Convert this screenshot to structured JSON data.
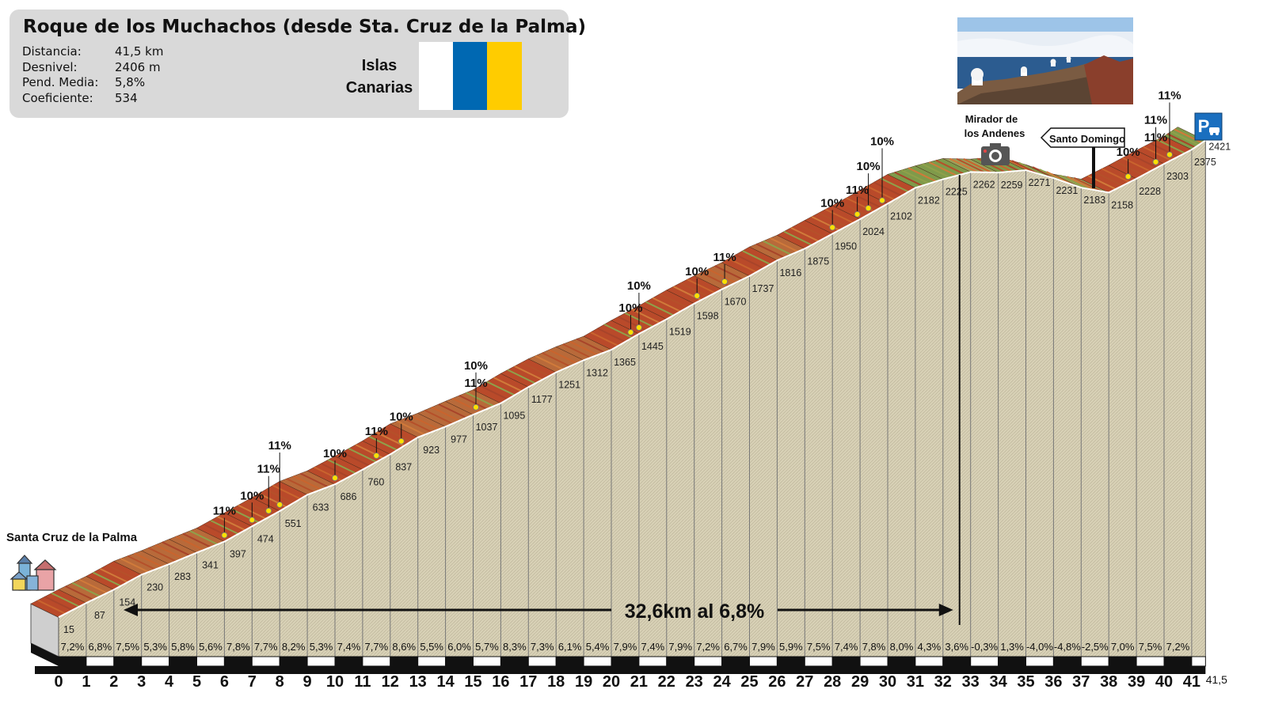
{
  "header": {
    "title": "Roque de los Muchachos (desde Sta. Cruz de la Palma)",
    "stats": [
      {
        "label": "Distancia:",
        "value": "41,5 km"
      },
      {
        "label": "Desnivel:",
        "value": "2406 m"
      },
      {
        "label": "Pend. Media:",
        "value": "5,8%"
      },
      {
        "label": "Coeficiente:",
        "value": "534"
      }
    ],
    "region": [
      "Islas",
      "Canarias"
    ],
    "flag_colors": [
      "#ffffff",
      "#0068b2",
      "#ffcc00"
    ]
  },
  "colors": {
    "fill": "#d6cfb4",
    "grid": "#777777",
    "ramp": "#c0582a",
    "marker": "#ffe000",
    "road": "#cfcfcf"
  },
  "chart_data": {
    "type": "area",
    "xlabel": "",
    "ylabel": "",
    "x_ticks": [
      "0",
      "1",
      "2",
      "3",
      "4",
      "5",
      "6",
      "7",
      "8",
      "9",
      "10",
      "11",
      "12",
      "13",
      "14",
      "15",
      "16",
      "17",
      "18",
      "19",
      "20",
      "21",
      "22",
      "23",
      "24",
      "25",
      "26",
      "27",
      "28",
      "29",
      "30",
      "31",
      "32",
      "33",
      "34",
      "35",
      "36",
      "37",
      "38",
      "39",
      "40",
      "41",
      "41,5"
    ],
    "km": [
      0,
      1,
      2,
      3,
      4,
      5,
      6,
      7,
      8,
      9,
      10,
      11,
      12,
      13,
      14,
      15,
      16,
      17,
      18,
      19,
      20,
      21,
      22,
      23,
      24,
      25,
      26,
      27,
      28,
      29,
      30,
      31,
      32,
      33,
      34,
      35,
      36,
      37,
      38,
      39,
      40,
      41,
      41.5
    ],
    "altitude": [
      15,
      87,
      154,
      230,
      283,
      341,
      397,
      474,
      551,
      633,
      686,
      760,
      837,
      923,
      977,
      1037,
      1095,
      1177,
      1251,
      1312,
      1365,
      1445,
      1519,
      1598,
      1670,
      1737,
      1816,
      1875,
      1950,
      2024,
      2102,
      2182,
      2225,
      2262,
      2259,
      2271,
      2231,
      2183,
      2158,
      2228,
      2303,
      2375,
      2421
    ],
    "altitude_labels": [
      "15",
      "87",
      "154",
      "230",
      "283",
      "341",
      "397",
      "474",
      "551",
      "633",
      "686",
      "760",
      "837",
      "923",
      "977",
      "1037",
      "1095",
      "1177",
      "1251",
      "1312",
      "1365",
      "1445",
      "1519",
      "1598",
      "1670",
      "1737",
      "1816",
      "1875",
      "1950",
      "2024",
      "2102",
      "2182",
      "2225",
      "2262",
      "2259",
      "2271",
      "2231",
      "2183",
      "2158",
      "2228",
      "2303",
      "2375",
      "2421"
    ],
    "gradients": [
      "7,2%",
      "6,8%",
      "7,5%",
      "5,3%",
      "5,8%",
      "5,6%",
      "7,8%",
      "7,7%",
      "8,2%",
      "5,3%",
      "7,4%",
      "7,7%",
      "8,6%",
      "5,5%",
      "6,0%",
      "5,7%",
      "8,3%",
      "7,3%",
      "6,1%",
      "5,4%",
      "7,9%",
      "7,4%",
      "7,9%",
      "7,2%",
      "6,7%",
      "7,9%",
      "5,9%",
      "7,5%",
      "7,4%",
      "7,8%",
      "8,0%",
      "4,3%",
      "3,6%",
      "-0,3%",
      "1,3%",
      "-4,0%",
      "-4,8%",
      "-2,5%",
      "7,0%",
      "7,5%",
      "7,2%"
    ],
    "steep_points": [
      {
        "km": 6.0,
        "label": "11%",
        "stack": 0
      },
      {
        "km": 7.0,
        "label": "10%",
        "stack": 0
      },
      {
        "km": 7.6,
        "label": "11%",
        "stack": 1
      },
      {
        "km": 8.0,
        "label": "11%",
        "stack": 2
      },
      {
        "km": 10.0,
        "label": "10%",
        "stack": 0
      },
      {
        "km": 11.5,
        "label": "11%",
        "stack": 0
      },
      {
        "km": 12.4,
        "label": "10%",
        "stack": 0
      },
      {
        "km": 15.1,
        "label": "11%",
        "stack": 0
      },
      {
        "km": 15.1,
        "label": "10%",
        "stack": 1
      },
      {
        "km": 20.7,
        "label": "10%",
        "stack": 0
      },
      {
        "km": 21.0,
        "label": "10%",
        "stack": 1
      },
      {
        "km": 23.1,
        "label": "10%",
        "stack": 0
      },
      {
        "km": 24.1,
        "label": "11%",
        "stack": 0
      },
      {
        "km": 28.0,
        "label": "10%",
        "stack": 0
      },
      {
        "km": 28.9,
        "label": "11%",
        "stack": 0
      },
      {
        "km": 29.3,
        "label": "10%",
        "stack": 1
      },
      {
        "km": 29.8,
        "label": "10%",
        "stack": 2
      },
      {
        "km": 38.7,
        "label": "10%",
        "stack": 0
      },
      {
        "km": 39.7,
        "label": "11%",
        "stack": 0
      },
      {
        "km": 39.7,
        "label": "11%",
        "stack": 1
      },
      {
        "km": 40.2,
        "label": "11%",
        "stack": 2
      }
    ],
    "climb_label": "32,6km al 6,8%",
    "climb_range": [
      0,
      32.6
    ],
    "annotations": {
      "start_town": "Santa Cruz de la Palma",
      "viewpoint": [
        "Mirador de",
        "los Andenes"
      ],
      "viewpoint_km": 32.8,
      "junction": "Santo Domingo",
      "junction_km": 37.4,
      "parking_icon": "parking-icon",
      "town_icon": "houses-icon",
      "camera_icon": "camera-icon"
    }
  }
}
